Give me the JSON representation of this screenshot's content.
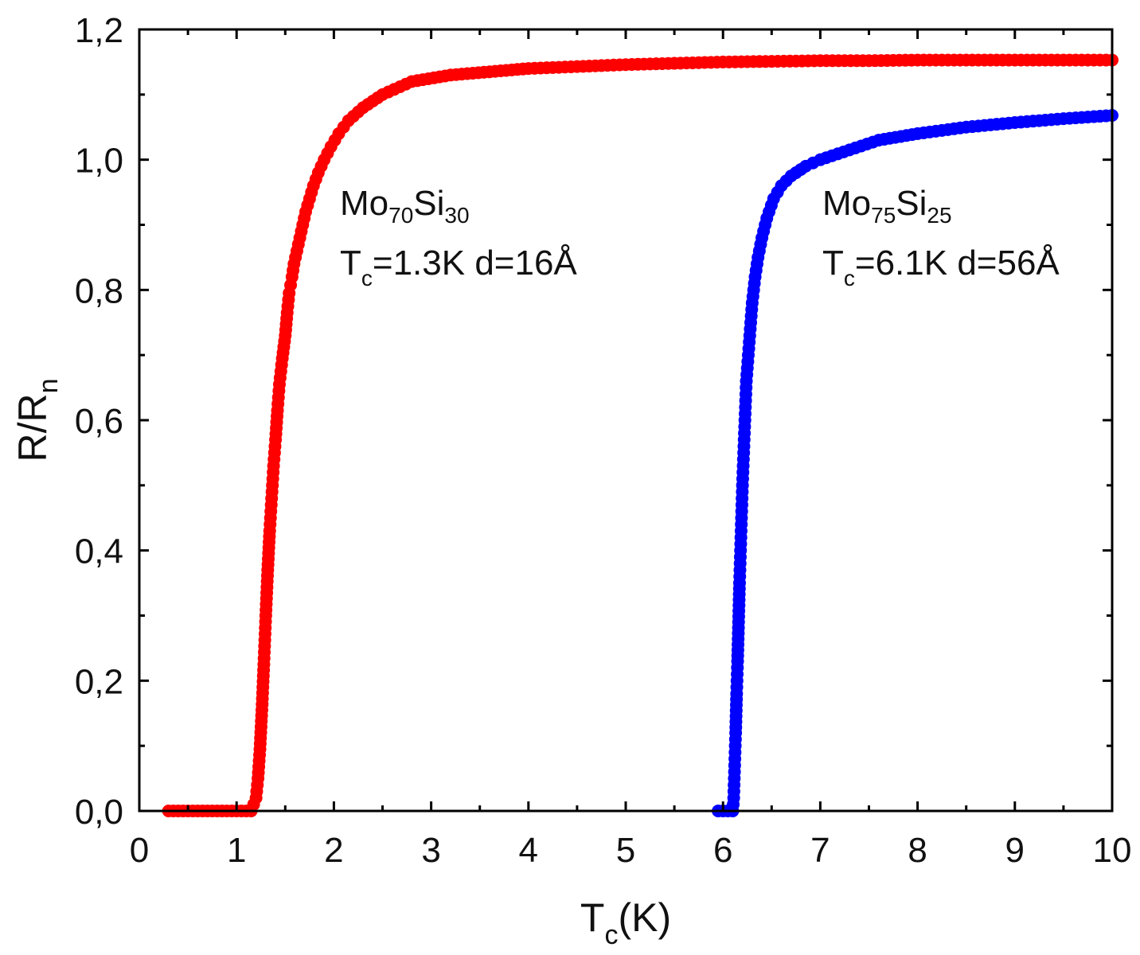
{
  "chart_data": {
    "type": "scatter",
    "title": "",
    "xlabel": {
      "main": "T",
      "sub": "c",
      "unit": "(K)"
    },
    "ylabel": {
      "main": "R/R",
      "sub": "n"
    },
    "xlim": [
      0,
      10
    ],
    "ylim": [
      0,
      1.2
    ],
    "x_ticks": [
      0,
      1,
      2,
      3,
      4,
      5,
      6,
      7,
      8,
      9,
      10
    ],
    "x_tick_labels": [
      "0",
      "1",
      "2",
      "3",
      "4",
      "5",
      "6",
      "7",
      "8",
      "9",
      "10"
    ],
    "y_ticks": [
      0,
      0.2,
      0.4,
      0.6,
      0.8,
      1.0,
      1.2
    ],
    "y_tick_labels": [
      "0,0",
      "0,2",
      "0,4",
      "0,6",
      "0,8",
      "1,0",
      "1,2"
    ],
    "grid": false,
    "series": [
      {
        "name": "Mo70Si30",
        "color": "#ff0000",
        "tc": 1.3,
        "thickness": "16Å",
        "points": [
          [
            0.3,
            0.0
          ],
          [
            0.35,
            0.0
          ],
          [
            0.4,
            0.0
          ],
          [
            0.45,
            0.0
          ],
          [
            0.5,
            0.0
          ],
          [
            0.55,
            0.0
          ],
          [
            0.6,
            0.0
          ],
          [
            0.65,
            0.0
          ],
          [
            0.7,
            0.0
          ],
          [
            0.75,
            0.0
          ],
          [
            0.8,
            0.0
          ],
          [
            0.85,
            0.0
          ],
          [
            0.9,
            0.0
          ],
          [
            0.95,
            0.0
          ],
          [
            1.0,
            0.0
          ],
          [
            1.05,
            0.0
          ],
          [
            1.1,
            0.0
          ],
          [
            1.15,
            0.0
          ],
          [
            1.2,
            0.02
          ],
          [
            1.22,
            0.05
          ],
          [
            1.24,
            0.095
          ],
          [
            1.26,
            0.155
          ],
          [
            1.28,
            0.225
          ],
          [
            1.3,
            0.3
          ],
          [
            1.32,
            0.37
          ],
          [
            1.34,
            0.43
          ],
          [
            1.36,
            0.48
          ],
          [
            1.38,
            0.53
          ],
          [
            1.4,
            0.57
          ],
          [
            1.42,
            0.615
          ],
          [
            1.44,
            0.655
          ],
          [
            1.47,
            0.695
          ],
          [
            1.5,
            0.73
          ],
          [
            1.52,
            0.765
          ],
          [
            1.54,
            0.795
          ],
          [
            1.57,
            0.82
          ],
          [
            1.59,
            0.84
          ],
          [
            1.62,
            0.86
          ],
          [
            1.65,
            0.88
          ],
          [
            1.68,
            0.9
          ],
          [
            1.71,
            0.92
          ],
          [
            1.75,
            0.94
          ],
          [
            1.79,
            0.96
          ],
          [
            1.84,
            0.98
          ],
          [
            1.9,
            1.0
          ],
          [
            1.97,
            1.02
          ],
          [
            2.05,
            1.04
          ],
          [
            2.15,
            1.06
          ],
          [
            2.3,
            1.08
          ],
          [
            2.5,
            1.1
          ],
          [
            2.8,
            1.12
          ],
          [
            3.2,
            1.13
          ],
          [
            3.6,
            1.135
          ],
          [
            4.0,
            1.14
          ],
          [
            4.5,
            1.143
          ],
          [
            5.0,
            1.146
          ],
          [
            5.5,
            1.148
          ],
          [
            6.0,
            1.15
          ],
          [
            6.5,
            1.151
          ],
          [
            7.0,
            1.152
          ],
          [
            7.5,
            1.152
          ],
          [
            8.0,
            1.153
          ],
          [
            8.5,
            1.153
          ],
          [
            9.0,
            1.153
          ],
          [
            9.5,
            1.153
          ],
          [
            10.0,
            1.153
          ]
        ]
      },
      {
        "name": "Mo75Si25",
        "color": "#0000ff",
        "tc": 6.1,
        "thickness": "56Å",
        "points": [
          [
            5.95,
            0.0
          ],
          [
            6.0,
            0.0
          ],
          [
            6.05,
            0.0
          ],
          [
            6.1,
            0.0
          ],
          [
            6.11,
            0.02
          ],
          [
            6.12,
            0.07
          ],
          [
            6.13,
            0.12
          ],
          [
            6.14,
            0.18
          ],
          [
            6.15,
            0.23
          ],
          [
            6.16,
            0.29
          ],
          [
            6.17,
            0.35
          ],
          [
            6.18,
            0.4
          ],
          [
            6.19,
            0.45
          ],
          [
            6.2,
            0.5
          ],
          [
            6.21,
            0.54
          ],
          [
            6.22,
            0.58
          ],
          [
            6.23,
            0.62
          ],
          [
            6.24,
            0.66
          ],
          [
            6.26,
            0.7
          ],
          [
            6.28,
            0.74
          ],
          [
            6.3,
            0.78
          ],
          [
            6.33,
            0.82
          ],
          [
            6.36,
            0.85
          ],
          [
            6.4,
            0.88
          ],
          [
            6.45,
            0.91
          ],
          [
            6.52,
            0.94
          ],
          [
            6.6,
            0.96
          ],
          [
            6.7,
            0.975
          ],
          [
            6.85,
            0.99
          ],
          [
            7.0,
            1.0
          ],
          [
            7.3,
            1.015
          ],
          [
            7.6,
            1.03
          ],
          [
            8.0,
            1.04
          ],
          [
            8.5,
            1.05
          ],
          [
            9.0,
            1.057
          ],
          [
            9.5,
            1.063
          ],
          [
            10.0,
            1.068
          ]
        ]
      }
    ],
    "annotations": [
      {
        "label": "Mo",
        "sub1": "70",
        "mid": "Si",
        "sub2": "30",
        "line2_main": "T",
        "line2_sub": "c",
        "line2_rest": "=1.3K d=16Å"
      },
      {
        "label": "Mo",
        "sub1": "75",
        "mid": "Si",
        "sub2": "25",
        "line2_main": "T",
        "line2_sub": "c",
        "line2_rest": "=6.1K d=56Å"
      }
    ]
  }
}
